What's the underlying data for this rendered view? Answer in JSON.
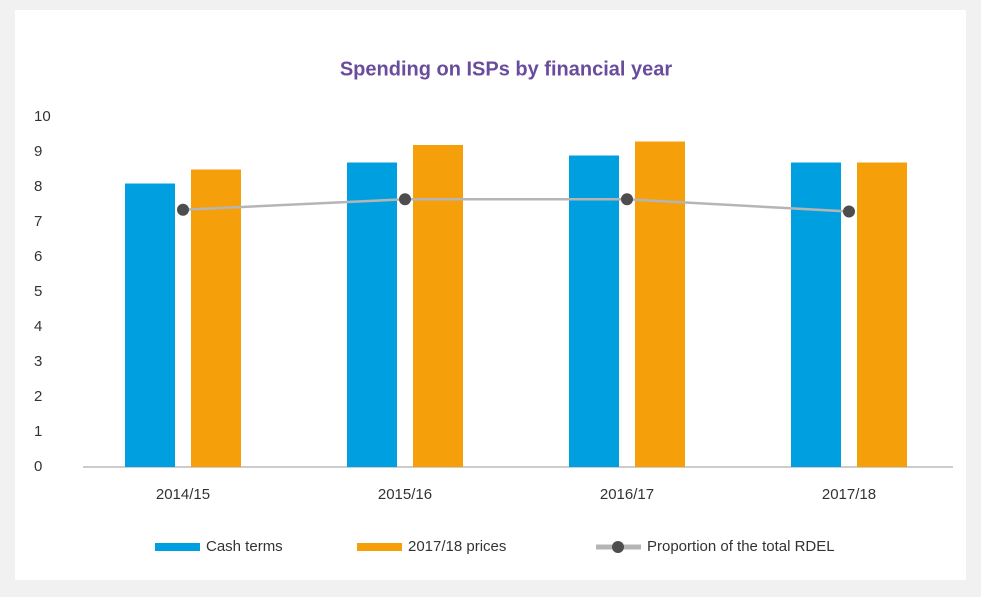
{
  "chart_data": {
    "type": "bar",
    "title": "Spending on ISPs by financial year",
    "categories": [
      "2014/15",
      "2015/16",
      "2016/17",
      "2017/18"
    ],
    "series": [
      {
        "name": "Cash terms",
        "type": "bar",
        "color": "#00a0e0",
        "values": [
          8.1,
          8.7,
          8.9,
          8.7
        ]
      },
      {
        "name": "2017/18 prices",
        "type": "bar",
        "color": "#f5a00a",
        "values": [
          8.5,
          9.2,
          9.3,
          8.7
        ]
      },
      {
        "name": "Proportion of the total RDEL",
        "type": "line",
        "color": "#b5b5b5",
        "marker_color": "#4d4d4d",
        "values": [
          7.35,
          7.65,
          7.65,
          7.3
        ]
      }
    ],
    "ylim": [
      0,
      10
    ],
    "yticks": [
      0,
      1,
      2,
      3,
      4,
      5,
      6,
      7,
      8,
      9,
      10
    ],
    "legend": "bottom"
  }
}
